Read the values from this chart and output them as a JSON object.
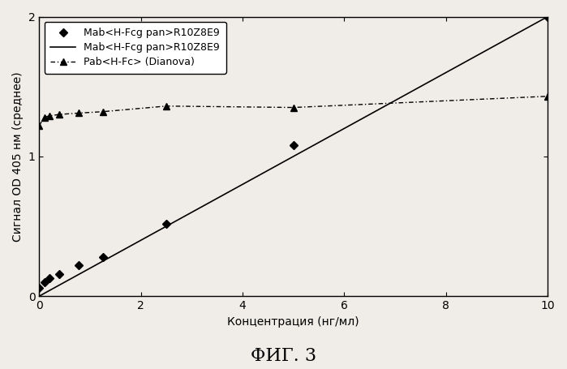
{
  "line1_x": [
    0.0,
    0.1,
    0.2,
    0.39,
    0.78,
    1.25,
    2.5,
    5.0,
    10.0
  ],
  "line1_y": [
    0.06,
    0.1,
    0.13,
    0.16,
    0.22,
    0.28,
    0.52,
    1.08,
    2.0
  ],
  "line2_x": [
    0.0,
    10.0
  ],
  "line2_y": [
    0.0,
    2.0
  ],
  "line3_x": [
    0.0,
    0.1,
    0.2,
    0.39,
    0.78,
    1.25,
    2.5,
    5.0,
    10.0
  ],
  "line3_y": [
    1.22,
    1.28,
    1.29,
    1.3,
    1.31,
    1.32,
    1.36,
    1.35,
    1.43
  ],
  "xlabel": "Концентрация (нг/мл)",
  "ylabel": "Сигнал OD 405 нм (среднее)",
  "title": "ФИГ. 3",
  "legend1": "Mab<H-Fcg pan>R10Z8E9",
  "legend2": "Mab<H-Fcg pan>R10Z8E9",
  "legend3": "Pab<H-Fc> (Dianova)",
  "xlim": [
    0,
    10
  ],
  "ylim": [
    0,
    2.0
  ],
  "xticks": [
    0,
    2,
    4,
    6,
    8,
    10
  ],
  "yticks": [
    0,
    1,
    2
  ],
  "line_color": "#000000",
  "background_color": "#f0ede8",
  "plot_bg": "#f0ede8",
  "fig_width": 6.99,
  "fig_height": 4.55,
  "dpi": 100
}
